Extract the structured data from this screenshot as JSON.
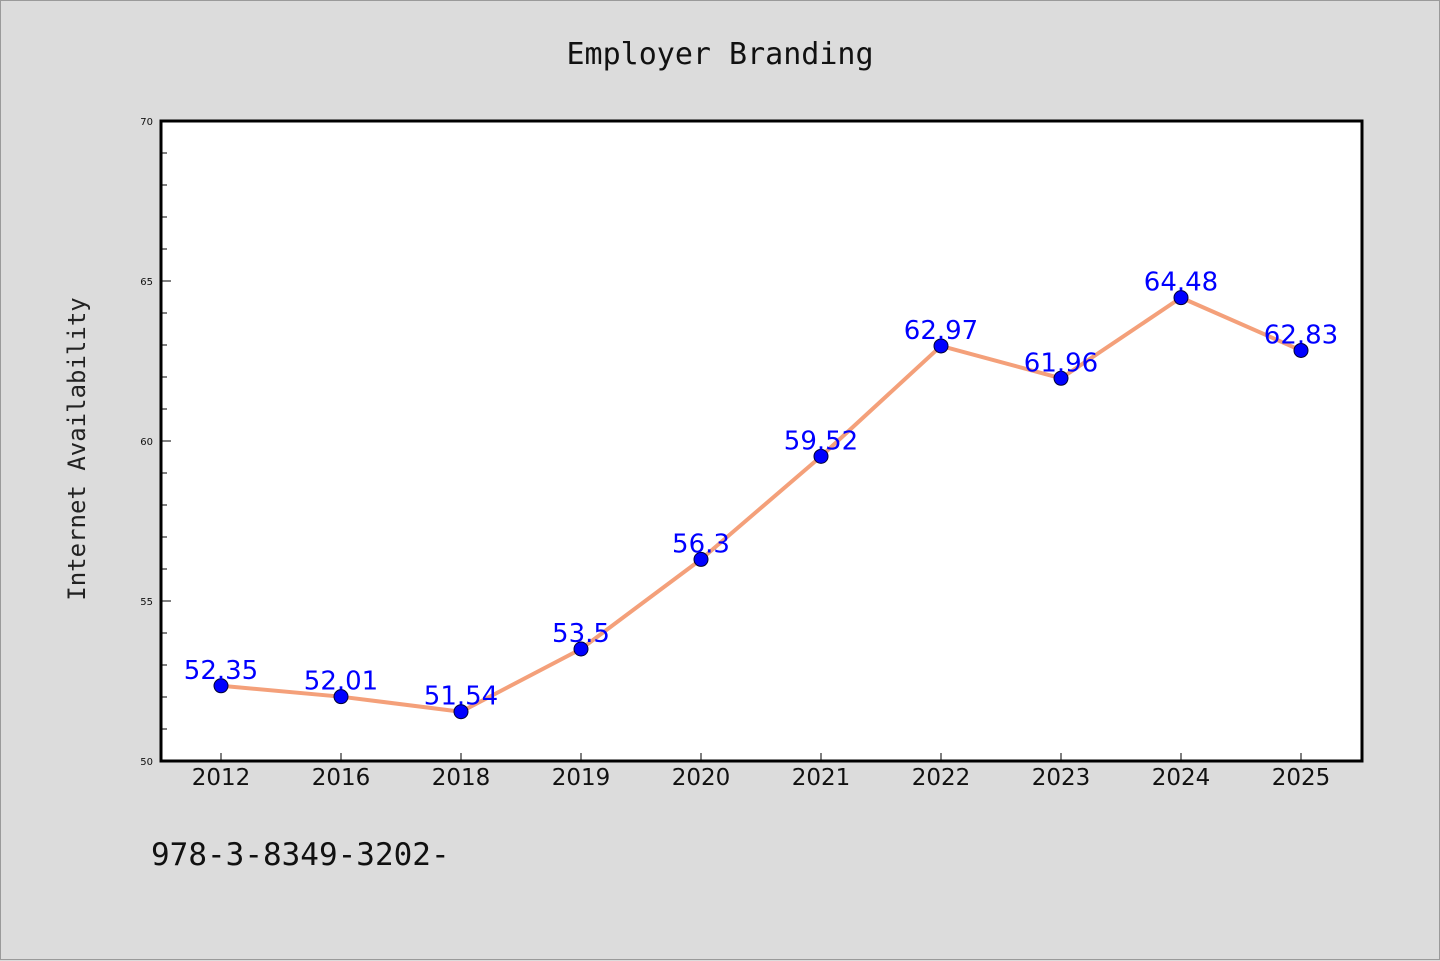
{
  "chart_data": {
    "type": "line",
    "title": "Employer Branding",
    "xlabel": "",
    "ylabel": "Internet Availability",
    "categories": [
      "2012",
      "2016",
      "2018",
      "2019",
      "2020",
      "2021",
      "2022",
      "2023",
      "2024",
      "2025"
    ],
    "series": [
      {
        "values": [
          52.35,
          52.01,
          51.54,
          53.5,
          56.3,
          59.52,
          62.97,
          61.96,
          64.48,
          62.83
        ],
        "labels": [
          "52.35",
          "52.01",
          "51.54",
          "53.5",
          "56.3",
          "59.52",
          "62.97",
          "61.96",
          "64.48",
          "62.83"
        ],
        "line_color": "#f4a07a",
        "marker_color": "#0000ff"
      }
    ],
    "ylim": [
      50,
      70
    ],
    "yticks": [
      "50",
      "55",
      "60",
      "65",
      "70"
    ],
    "grid": false,
    "legend": "none",
    "label_color": "#0000ff",
    "background": "#dcdcdc",
    "plot_background": "#ffffff"
  },
  "footnote": "978-3-8349-3202-"
}
